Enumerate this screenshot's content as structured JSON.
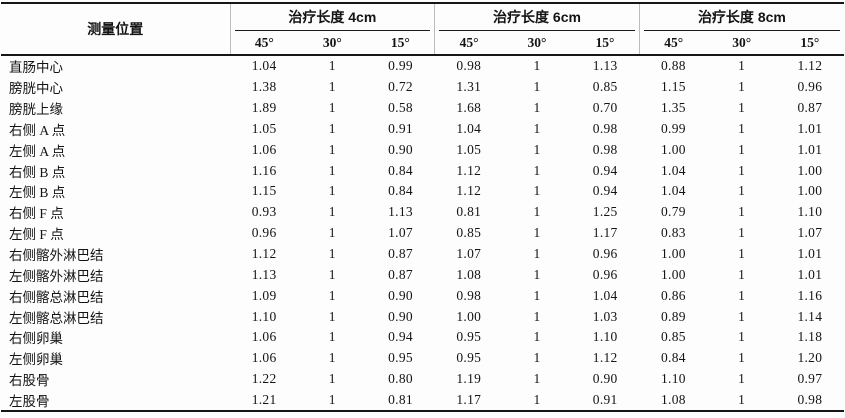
{
  "table": {
    "row_header": "测量位置",
    "groups": [
      {
        "label": "治疗长度 4cm",
        "angles": [
          "45°",
          "30°",
          "15°"
        ]
      },
      {
        "label": "治疗长度 6cm",
        "angles": [
          "45°",
          "30°",
          "15°"
        ]
      },
      {
        "label": "治疗长度 8cm",
        "angles": [
          "45°",
          "30°",
          "15°"
        ]
      }
    ],
    "rows": [
      {
        "label": "直肠中心",
        "values": [
          "1.04",
          "1",
          "0.99",
          "0.98",
          "1",
          "1.13",
          "0.88",
          "1",
          "1.12"
        ]
      },
      {
        "label": "膀胱中心",
        "values": [
          "1.38",
          "1",
          "0.72",
          "1.31",
          "1",
          "0.85",
          "1.15",
          "1",
          "0.96"
        ]
      },
      {
        "label": "膀胱上缘",
        "values": [
          "1.89",
          "1",
          "0.58",
          "1.68",
          "1",
          "0.70",
          "1.35",
          "1",
          "0.87"
        ]
      },
      {
        "label": "右侧 A 点",
        "values": [
          "1.05",
          "1",
          "0.91",
          "1.04",
          "1",
          "0.98",
          "0.99",
          "1",
          "1.01"
        ]
      },
      {
        "label": "左侧 A 点",
        "values": [
          "1.06",
          "1",
          "0.90",
          "1.05",
          "1",
          "0.98",
          "1.00",
          "1",
          "1.01"
        ]
      },
      {
        "label": "右侧 B 点",
        "values": [
          "1.16",
          "1",
          "0.84",
          "1.12",
          "1",
          "0.94",
          "1.04",
          "1",
          "1.00"
        ]
      },
      {
        "label": "左侧 B 点",
        "values": [
          "1.15",
          "1",
          "0.84",
          "1.12",
          "1",
          "0.94",
          "1.04",
          "1",
          "1.00"
        ]
      },
      {
        "label": "右侧 F 点",
        "values": [
          "0.93",
          "1",
          "1.13",
          "0.81",
          "1",
          "1.25",
          "0.79",
          "1",
          "1.10"
        ]
      },
      {
        "label": "左侧 F 点",
        "values": [
          "0.96",
          "1",
          "1.07",
          "0.85",
          "1",
          "1.17",
          "0.83",
          "1",
          "1.07"
        ]
      },
      {
        "label": "右侧髂外淋巴结",
        "values": [
          "1.12",
          "1",
          "0.87",
          "1.07",
          "1",
          "0.96",
          "1.00",
          "1",
          "1.01"
        ]
      },
      {
        "label": "左侧髂外淋巴结",
        "values": [
          "1.13",
          "1",
          "0.87",
          "1.08",
          "1",
          "0.96",
          "1.00",
          "1",
          "1.01"
        ]
      },
      {
        "label": "右侧髂总淋巴结",
        "values": [
          "1.09",
          "1",
          "0.90",
          "0.98",
          "1",
          "1.04",
          "0.86",
          "1",
          "1.16"
        ]
      },
      {
        "label": "左侧髂总淋巴结",
        "values": [
          "1.10",
          "1",
          "0.90",
          "1.00",
          "1",
          "1.03",
          "0.89",
          "1",
          "1.14"
        ]
      },
      {
        "label": "右侧卵巢",
        "values": [
          "1.06",
          "1",
          "0.94",
          "0.95",
          "1",
          "1.10",
          "0.85",
          "1",
          "1.18"
        ]
      },
      {
        "label": "左侧卵巢",
        "values": [
          "1.06",
          "1",
          "0.95",
          "0.95",
          "1",
          "1.12",
          "0.84",
          "1",
          "1.20"
        ]
      },
      {
        "label": "右股骨",
        "values": [
          "1.22",
          "1",
          "0.80",
          "1.19",
          "1",
          "0.90",
          "1.10",
          "1",
          "0.97"
        ]
      },
      {
        "label": "左股骨",
        "values": [
          "1.21",
          "1",
          "0.81",
          "1.17",
          "1",
          "0.91",
          "1.08",
          "1",
          "0.98"
        ]
      }
    ],
    "colors": {
      "rule": "#161616",
      "header_divider": "#bcbcbc",
      "background": "#fdfdfd",
      "text": "#141414"
    }
  }
}
